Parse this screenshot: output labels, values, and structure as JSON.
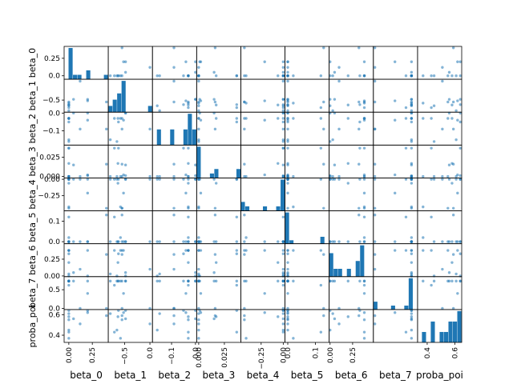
{
  "chart_data": {
    "type": "scatter",
    "subtype": "scatter-matrix",
    "colors": {
      "hist": "#1f77b4",
      "point": "#1f77b4",
      "frame": "#000000",
      "text": "#000000"
    },
    "variables": [
      {
        "name": "beta_0",
        "xlabel": "beta_0",
        "ylabel": "beta_0",
        "range": [
          -0.05,
          0.42
        ],
        "xticks": [
          {
            "v": 0.0,
            "label": "0.00"
          },
          {
            "v": 0.25,
            "label": "0.25"
          }
        ],
        "yticks": [
          {
            "v": 0.0,
            "label": "0.0"
          },
          {
            "v": 0.25,
            "label": "0.25"
          }
        ]
      },
      {
        "name": "beta_1",
        "xlabel": "beta_1",
        "ylabel": "beta_1",
        "range": [
          -0.82,
          0.05
        ],
        "xticks": [
          {
            "v": -0.5,
            "label": "−0.5"
          },
          {
            "v": 0.0,
            "label": "0.0"
          }
        ],
        "yticks": [
          {
            "v": -0.5,
            "label": "−0.5"
          }
        ]
      },
      {
        "name": "beta_2",
        "xlabel": "beta_2",
        "ylabel": "beta_2",
        "range": [
          -0.18,
          0.005
        ],
        "xticks": [
          {
            "v": -0.1,
            "label": "−0.1"
          },
          {
            "v": 0.0,
            "label": "0.0"
          }
        ],
        "yticks": [
          {
            "v": -0.1,
            "label": "−0.1"
          },
          {
            "v": 0.0,
            "label": "0.0"
          }
        ]
      },
      {
        "name": "beta_3",
        "xlabel": "beta_3",
        "ylabel": "beta_3",
        "range": [
          -0.002,
          0.041
        ],
        "xticks": [
          {
            "v": 0.0,
            "label": "0.000"
          },
          {
            "v": 0.025,
            "label": "0.025"
          }
        ],
        "yticks": [
          {
            "v": 0.0,
            "label": "0.000"
          },
          {
            "v": 0.025,
            "label": "0.025"
          }
        ]
      },
      {
        "name": "beta_4",
        "xlabel": "beta_4",
        "ylabel": "beta_4",
        "range": [
          -0.48,
          0.02
        ],
        "xticks": [
          {
            "v": -0.25,
            "label": "−0.25"
          },
          {
            "v": 0.0,
            "label": "0.00"
          }
        ],
        "yticks": [
          {
            "v": -0.25,
            "label": "−0.25"
          },
          {
            "v": 0.0,
            "label": "0.00"
          }
        ]
      },
      {
        "name": "beta_5",
        "xlabel": "beta_5",
        "ylabel": "beta_5",
        "range": [
          -0.01,
          0.15
        ],
        "xticks": [
          {
            "v": 0.0,
            "label": "0.0"
          },
          {
            "v": 0.1,
            "label": "0.1"
          }
        ],
        "yticks": [
          {
            "v": 0.0,
            "label": "0.0"
          },
          {
            "v": 0.1,
            "label": "0.1"
          }
        ]
      },
      {
        "name": "beta_6",
        "xlabel": "beta_6",
        "ylabel": "beta_6",
        "range": [
          -0.01,
          0.48
        ],
        "xticks": [
          {
            "v": 0.0,
            "label": "0.00"
          },
          {
            "v": 0.25,
            "label": "0.25"
          }
        ],
        "yticks": [
          {
            "v": 0.0,
            "label": "0.00"
          },
          {
            "v": 0.25,
            "label": "0.25"
          }
        ]
      },
      {
        "name": "beta_7",
        "xlabel": "beta_7",
        "ylabel": "beta_7",
        "range": [
          -0.03,
          0.85
        ],
        "xticks": [],
        "yticks": [
          {
            "v": 0.0,
            "label": "0.0"
          },
          {
            "v": 0.5,
            "label": "0.5"
          }
        ]
      },
      {
        "name": "proba_poi",
        "xlabel": "proba_poi",
        "ylabel": "proba_poi",
        "range": [
          0.33,
          0.65
        ],
        "xticks": [
          {
            "v": 0.4,
            "label": "0.4"
          },
          {
            "v": 0.6,
            "label": "0.6"
          }
        ],
        "yticks": [
          {
            "v": 0.4,
            "label": "0.4"
          },
          {
            "v": 0.6,
            "label": "0.6"
          }
        ]
      }
    ],
    "samples": [
      [
        0.4,
        -0.55,
        -0.09,
        0.016,
        -0.44,
        0.13,
        0.32,
        0.0,
        0.59
      ],
      [
        0.0,
        -0.78,
        -0.15,
        0.0,
        0.0,
        0.0,
        0.03,
        0.73,
        0.61
      ],
      [
        0.0,
        -0.55,
        -0.03,
        0.0,
        -0.44,
        0.0,
        0.38,
        0.73,
        0.55
      ],
      [
        0.0,
        -0.7,
        -0.03,
        0.037,
        0.0,
        0.12,
        0.38,
        0.62,
        0.43
      ],
      [
        0.2,
        -0.48,
        0.0,
        0.001,
        0.0,
        0.0,
        0.0,
        0.73,
        0.64
      ],
      [
        0.0,
        -0.63,
        -0.03,
        0.017,
        -0.06,
        0.0,
        0.2,
        0.73,
        0.58
      ],
      [
        0.12,
        0.0,
        -0.09,
        0.0,
        0.0,
        0.0,
        0.1,
        0.0,
        0.51
      ],
      [
        0.2,
        -0.52,
        -0.04,
        0.002,
        -0.21,
        0.0,
        0.38,
        0.4,
        0.62
      ],
      [
        0.0,
        -0.65,
        -0.16,
        0.0,
        0.0,
        0.0,
        0.0,
        0.73,
        0.45
      ],
      [
        0.05,
        -0.48,
        0.0,
        0.015,
        0.0,
        0.0,
        0.05,
        0.73,
        0.56
      ],
      [
        0.0,
        -0.58,
        -0.03,
        0.0,
        -0.42,
        0.02,
        0.38,
        0.73,
        0.37
      ],
      [
        0.0,
        -0.62,
        -0.05,
        0.037,
        0.0,
        0.0,
        0.33,
        0.73,
        0.64
      ]
    ]
  }
}
